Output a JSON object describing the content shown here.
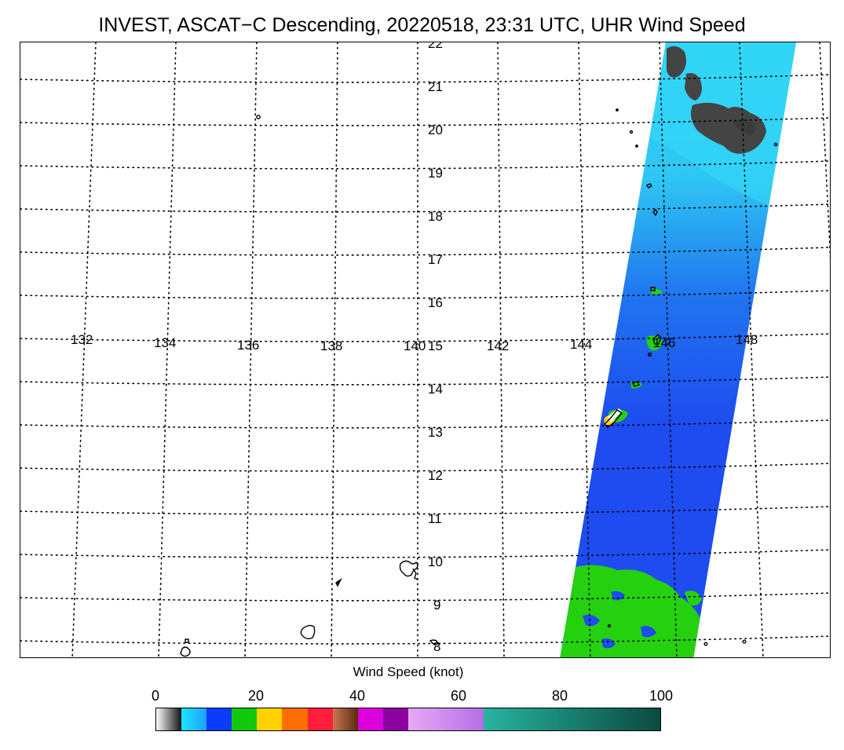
{
  "title": "INVEST, ASCAT−C Descending, 20220518, 23:31 UTC, UHR Wind Speed",
  "map": {
    "latitude_labels": [
      "22",
      "21",
      "20",
      "19",
      "18",
      "17",
      "16",
      "15",
      "14",
      "13",
      "12",
      "11",
      "10",
      "9",
      "8"
    ],
    "longitude_labels": [
      "132",
      "134",
      "136",
      "138",
      "140",
      "142",
      "144",
      "146",
      "148"
    ],
    "grid_line_style": "dotted",
    "coastline_color": "#000000"
  },
  "colorbar": {
    "title": "Wind Speed (knot)",
    "ticks": [
      "0",
      "20",
      "40",
      "60",
      "80",
      "100"
    ],
    "range": [
      0,
      100
    ],
    "segments": [
      {
        "from": 0,
        "to": 5,
        "color": "#555555"
      },
      {
        "from": 5,
        "to": 10,
        "color": "#19d2ff"
      },
      {
        "from": 10,
        "to": 15,
        "color": "#0a3cff"
      },
      {
        "from": 15,
        "to": 20,
        "color": "#12c80a"
      },
      {
        "from": 20,
        "to": 25,
        "color": "#ffd200"
      },
      {
        "from": 25,
        "to": 30,
        "color": "#ff6e00"
      },
      {
        "from": 30,
        "to": 35,
        "color": "#ff1e3c"
      },
      {
        "from": 35,
        "to": 40,
        "color": "#9a5028"
      },
      {
        "from": 40,
        "to": 45,
        "color": "#dc00dc"
      },
      {
        "from": 45,
        "to": 50,
        "color": "#8c00a0"
      },
      {
        "from": 50,
        "to": 65,
        "color": "#dc96f0"
      },
      {
        "from": 65,
        "to": 100,
        "color": "#20a896"
      }
    ]
  },
  "swath_colors": {
    "calm": "#444444",
    "light": "#2fd3f5",
    "moderate": "#1e4cf0",
    "fresh": "#25d10e",
    "strong": "#ffd800"
  }
}
